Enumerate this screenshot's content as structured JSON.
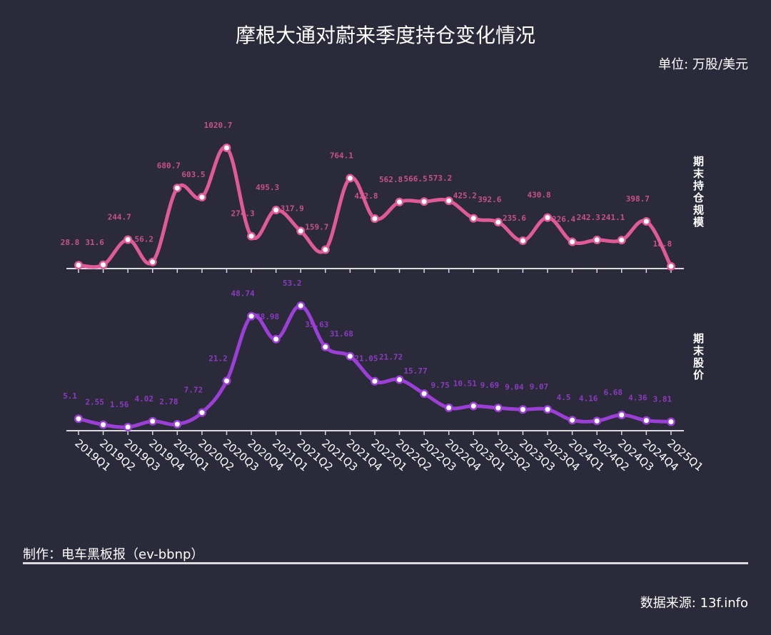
{
  "header": {
    "title": "摩根大通对蔚来季度持仓变化情况",
    "unit": "单位: 万股/美元"
  },
  "footer": {
    "credit": "制作：电车黑板报（ev-bbnp）",
    "source": "数据来源: 13f.info"
  },
  "colors": {
    "background": "#2b2a3a",
    "holdings_line": "#e05a97",
    "price_line": "#9b3fd6",
    "axis": "#d9d9de"
  },
  "chart_data": [
    {
      "type": "line",
      "title": "期末持仓规模",
      "ylabel": "期末持仓规模",
      "unit": "万股",
      "categories": [
        "2019Q1",
        "2019Q2",
        "2019Q3",
        "2019Q4",
        "2020Q1",
        "2020Q2",
        "2020Q3",
        "2020Q4",
        "2021Q1",
        "2021Q2",
        "2021Q3",
        "2021Q4",
        "2022Q1",
        "2022Q2",
        "2022Q3",
        "2022Q4",
        "2023Q1",
        "2023Q2",
        "2023Q3",
        "2023Q4",
        "2024Q1",
        "2024Q2",
        "2024Q3",
        "2024Q4",
        "2025Q1"
      ],
      "values": [
        28.8,
        31.6,
        244.7,
        56.2,
        680.7,
        603.5,
        1020.7,
        274.3,
        495.3,
        317.9,
        159.7,
        764.1,
        422.8,
        562.8,
        566.5,
        573.2,
        425.2,
        392.6,
        235.6,
        430.8,
        226.4,
        242.3,
        241.1,
        398.7,
        18.8
      ],
      "labels": [
        "28.8",
        "31.6",
        "244.7",
        "56.2",
        "680.7",
        "603.5",
        "1020.7",
        "274.3",
        "495.3",
        "317.9",
        "159.7",
        "764.1",
        "422.8",
        "562.8",
        "566.5",
        "573.2",
        "425.2",
        "392.6",
        "235.6",
        "430.8",
        "226.4",
        "242.3",
        "241.1",
        "398.7",
        "18.8"
      ],
      "smooth": true,
      "grid": false
    },
    {
      "type": "line",
      "title": "期末股价",
      "ylabel": "期末股价",
      "unit": "美元",
      "categories": [
        "2019Q1",
        "2019Q2",
        "2019Q3",
        "2019Q4",
        "2020Q1",
        "2020Q2",
        "2020Q3",
        "2020Q4",
        "2021Q1",
        "2021Q2",
        "2021Q3",
        "2021Q4",
        "2022Q1",
        "2022Q2",
        "2022Q3",
        "2022Q4",
        "2023Q1",
        "2023Q2",
        "2023Q3",
        "2023Q4",
        "2024Q1",
        "2024Q2",
        "2024Q3",
        "2024Q4",
        "2025Q1"
      ],
      "values": [
        5.1,
        2.55,
        1.56,
        4.02,
        2.78,
        7.72,
        21.2,
        48.74,
        38.98,
        53.2,
        35.63,
        31.68,
        21.05,
        21.72,
        15.77,
        9.75,
        10.51,
        9.69,
        9.04,
        9.07,
        4.5,
        4.16,
        6.68,
        4.36,
        3.81
      ],
      "labels": [
        "5.1",
        "2.55",
        "1.56",
        "4.02",
        "2.78",
        "7.72",
        "21.2",
        "48.74",
        "38.98",
        "53.2",
        "35.63",
        "31.68",
        "21.05",
        "21.72",
        "15.77",
        "9.75",
        "10.51",
        "9.69",
        "9.04",
        "9.07",
        "4.5",
        "4.16",
        "6.68",
        "4.36",
        "3.81"
      ],
      "smooth": true,
      "grid": false
    }
  ]
}
